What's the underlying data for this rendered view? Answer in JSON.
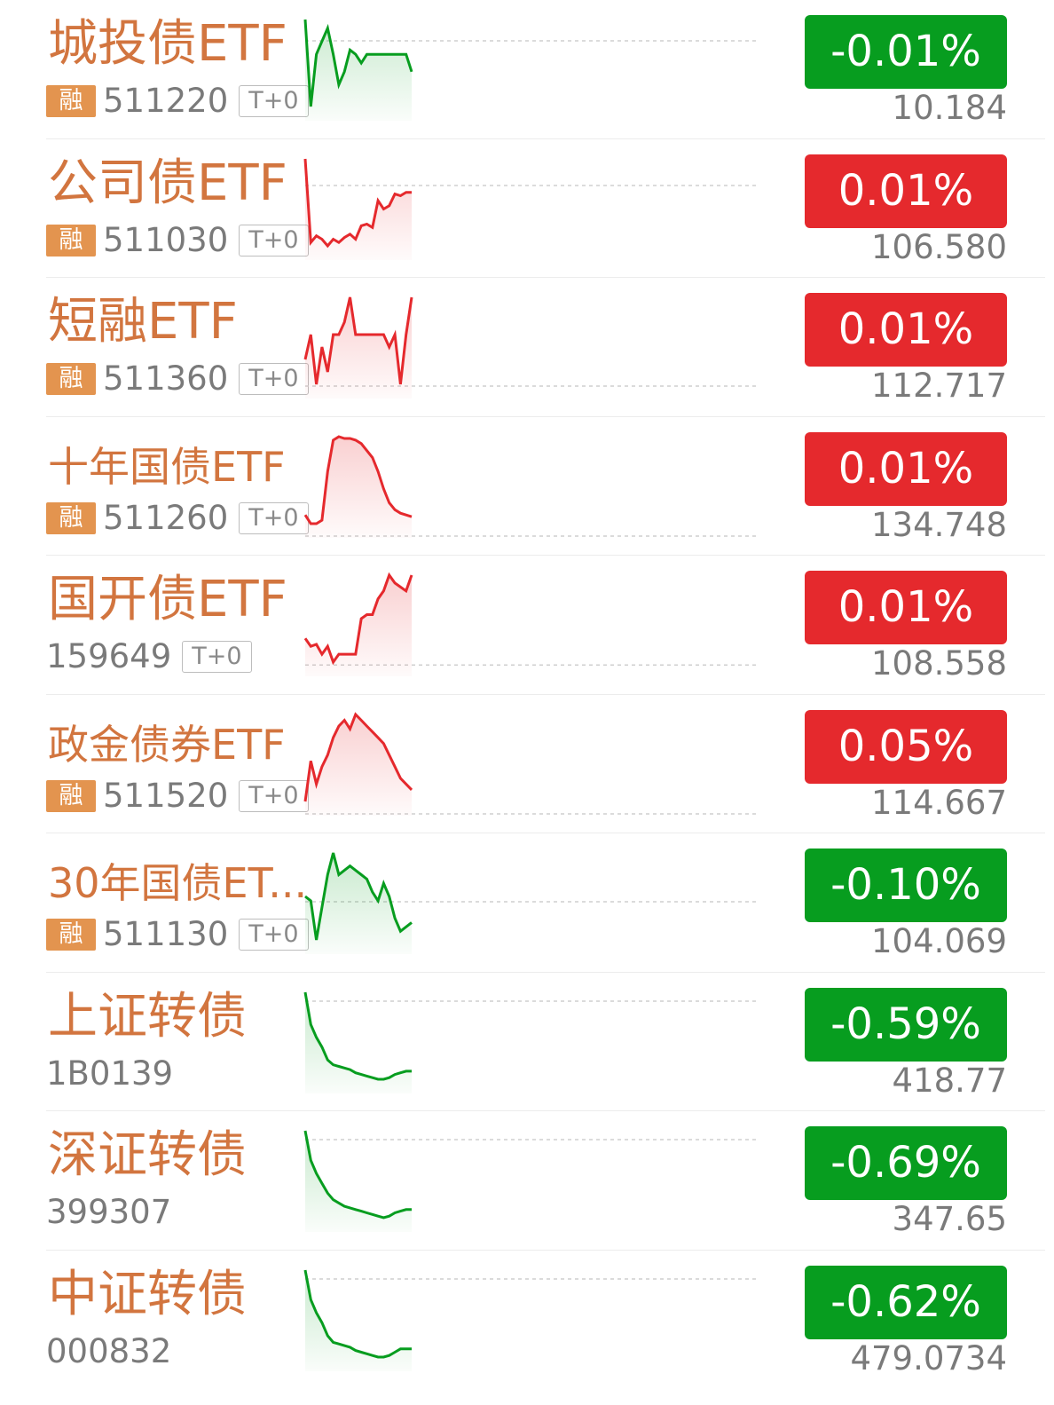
{
  "colors": {
    "up": "#e5292d",
    "down": "#079d1f",
    "name": "#d2753f"
  },
  "rows": [
    {
      "name": "城投债ETF",
      "badge": "融",
      "code": "511220",
      "tag": "T+0",
      "change": "-0.01%",
      "price": "10.184",
      "dir": "down",
      "spark": [
        100,
        80,
        92,
        95,
        98,
        92,
        85,
        88,
        93,
        92,
        90,
        92,
        92,
        92,
        92,
        92,
        92,
        92,
        92,
        88
      ]
    },
    {
      "name": "公司债ETF",
      "badge": "融",
      "code": "511030",
      "tag": "T+0",
      "change": "0.01%",
      "price": "106.580",
      "dir": "up",
      "spark": [
        100,
        50,
        54,
        52,
        48,
        52,
        50,
        53,
        55,
        52,
        60,
        61,
        59,
        75,
        70,
        72,
        79,
        78,
        80,
        80
      ]
    },
    {
      "name": "短融ETF",
      "badge": "融",
      "code": "511360",
      "tag": "T+0",
      "change": "0.01%",
      "price": "112.717",
      "dir": "up",
      "spark": [
        60,
        62,
        58,
        61,
        59,
        62,
        62,
        63,
        65,
        62,
        62,
        62,
        62,
        62,
        62,
        61,
        62,
        58,
        62,
        65
      ]
    },
    {
      "name": "十年国债ETF",
      "badge": "融",
      "code": "511260",
      "tag": "T+0",
      "change": "0.01%",
      "price": "134.748",
      "dir": "up",
      "spark": [
        55,
        50,
        50,
        52,
        80,
        98,
        100,
        99,
        99,
        98,
        96,
        92,
        88,
        80,
        70,
        62,
        58,
        56,
        55,
        54
      ]
    },
    {
      "name": "国开债ETF",
      "badge": "",
      "code": "159649",
      "tag": "T+0",
      "change": "0.01%",
      "price": "108.558",
      "dir": "up",
      "spark": [
        60,
        56,
        57,
        52,
        56,
        48,
        52,
        52,
        52,
        52,
        70,
        72,
        72,
        80,
        84,
        92,
        88,
        86,
        84,
        92
      ]
    },
    {
      "name": "政金债券ETF",
      "badge": "融",
      "code": "511520",
      "tag": "T+0",
      "change": "0.05%",
      "price": "114.667",
      "dir": "up",
      "spark": [
        70,
        84,
        76,
        82,
        86,
        92,
        96,
        98,
        95,
        100,
        98,
        96,
        94,
        92,
        90,
        86,
        82,
        78,
        76,
        74
      ]
    },
    {
      "name": "30年国债ET...",
      "badge": "融",
      "code": "511130",
      "tag": "T+0",
      "change": "-0.10%",
      "price": "104.069",
      "dir": "down",
      "spark": [
        60,
        58,
        40,
        55,
        70,
        80,
        70,
        72,
        74,
        72,
        70,
        68,
        62,
        58,
        66,
        60,
        50,
        44,
        46,
        48
      ]
    },
    {
      "name": "上证转债",
      "badge": "",
      "code": "1B0139",
      "tag": "",
      "change": "-0.59%",
      "price": "418.77",
      "dir": "down",
      "spark": [
        100,
        80,
        72,
        66,
        58,
        55,
        54,
        53,
        52,
        50,
        49,
        48,
        47,
        46,
        46,
        47,
        49,
        50,
        51,
        51
      ]
    },
    {
      "name": "深证转债",
      "badge": "",
      "code": "399307",
      "tag": "",
      "change": "-0.69%",
      "price": "347.65",
      "dir": "down",
      "spark": [
        100,
        82,
        74,
        68,
        62,
        58,
        56,
        54,
        53,
        52,
        51,
        50,
        49,
        48,
        47,
        48,
        50,
        51,
        52,
        52
      ]
    },
    {
      "name": "中证转债",
      "badge": "",
      "code": "000832",
      "tag": "",
      "change": "-0.62%",
      "price": "479.0734",
      "dir": "down",
      "spark": [
        100,
        82,
        74,
        68,
        60,
        56,
        55,
        54,
        53,
        51,
        50,
        49,
        48,
        47,
        47,
        48,
        50,
        52,
        52,
        52
      ]
    }
  ]
}
